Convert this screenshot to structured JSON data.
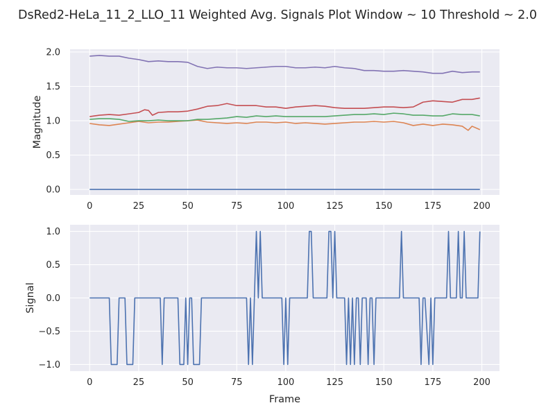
{
  "figure": {
    "title": "DsRed2-HeLa_11_2_LLO_11 Weighted Avg. Signals Plot Window ~ 10 Threshold ~ 2.0",
    "style": {
      "background": "#eaeaf2",
      "grid": "#ffffff",
      "text": "#262626"
    }
  },
  "chart_data": [
    {
      "type": "line",
      "title": "",
      "xlabel": "",
      "ylabel": "Magnitude",
      "xlim": [
        -10,
        209
      ],
      "ylim": [
        -0.08,
        2.04
      ],
      "xticks": [
        0,
        25,
        50,
        75,
        100,
        125,
        150,
        175,
        200
      ],
      "yticks": [
        0.0,
        0.5,
        1.0,
        1.5,
        2.0
      ],
      "xtick_labels": [
        "0",
        "25",
        "50",
        "75",
        "100",
        "125",
        "150",
        "175",
        "200"
      ],
      "ytick_labels": [
        "0.0",
        "0.5",
        "1.0",
        "1.5",
        "2.0"
      ],
      "grid": true,
      "series": [
        {
          "color": "#4c72b0",
          "x": [
            0,
            199
          ],
          "values": [
            0.0,
            0.0
          ]
        },
        {
          "color": "#dd8452",
          "x": [
            0,
            5,
            10,
            15,
            20,
            25,
            30,
            35,
            40,
            45,
            50,
            55,
            60,
            65,
            70,
            75,
            80,
            85,
            90,
            95,
            100,
            105,
            110,
            115,
            120,
            125,
            130,
            135,
            140,
            145,
            150,
            155,
            160,
            165,
            170,
            175,
            180,
            185,
            190,
            193,
            195,
            199
          ],
          "values": [
            0.96,
            0.94,
            0.93,
            0.95,
            0.97,
            0.99,
            0.97,
            0.98,
            0.98,
            0.99,
            1.0,
            1.01,
            0.98,
            0.97,
            0.96,
            0.97,
            0.96,
            0.98,
            0.98,
            0.97,
            0.98,
            0.96,
            0.97,
            0.96,
            0.95,
            0.96,
            0.97,
            0.98,
            0.98,
            0.99,
            0.98,
            0.99,
            0.97,
            0.93,
            0.95,
            0.93,
            0.95,
            0.94,
            0.92,
            0.86,
            0.92,
            0.87
          ]
        },
        {
          "color": "#55a868",
          "x": [
            0,
            5,
            10,
            15,
            20,
            25,
            30,
            35,
            40,
            45,
            50,
            55,
            60,
            65,
            70,
            75,
            80,
            85,
            90,
            95,
            100,
            105,
            110,
            115,
            120,
            125,
            130,
            135,
            140,
            145,
            150,
            155,
            160,
            165,
            170,
            175,
            180,
            185,
            190,
            195,
            199
          ],
          "values": [
            1.02,
            1.03,
            1.03,
            1.02,
            0.99,
            1.0,
            1.0,
            1.01,
            1.0,
            1.0,
            1.0,
            1.02,
            1.02,
            1.03,
            1.04,
            1.06,
            1.05,
            1.07,
            1.06,
            1.07,
            1.06,
            1.06,
            1.06,
            1.06,
            1.06,
            1.07,
            1.08,
            1.09,
            1.09,
            1.1,
            1.09,
            1.11,
            1.1,
            1.08,
            1.08,
            1.07,
            1.07,
            1.1,
            1.09,
            1.09,
            1.07
          ]
        },
        {
          "color": "#c44e52",
          "x": [
            0,
            5,
            10,
            15,
            20,
            25,
            28,
            30,
            32,
            35,
            40,
            45,
            50,
            55,
            60,
            65,
            70,
            75,
            80,
            85,
            90,
            95,
            100,
            105,
            110,
            115,
            120,
            125,
            130,
            135,
            140,
            145,
            150,
            155,
            160,
            165,
            170,
            175,
            180,
            185,
            190,
            195,
            199
          ],
          "values": [
            1.06,
            1.08,
            1.09,
            1.08,
            1.1,
            1.12,
            1.16,
            1.15,
            1.08,
            1.12,
            1.13,
            1.13,
            1.14,
            1.17,
            1.21,
            1.22,
            1.25,
            1.22,
            1.22,
            1.22,
            1.2,
            1.2,
            1.18,
            1.2,
            1.21,
            1.22,
            1.21,
            1.19,
            1.18,
            1.18,
            1.18,
            1.19,
            1.2,
            1.2,
            1.19,
            1.2,
            1.27,
            1.29,
            1.28,
            1.27,
            1.31,
            1.31,
            1.33
          ]
        },
        {
          "color": "#8172b3",
          "x": [
            0,
            5,
            10,
            15,
            20,
            25,
            30,
            35,
            40,
            45,
            50,
            55,
            60,
            65,
            70,
            75,
            80,
            85,
            90,
            95,
            100,
            105,
            110,
            115,
            120,
            125,
            130,
            135,
            140,
            145,
            150,
            155,
            160,
            165,
            170,
            175,
            180,
            185,
            190,
            195,
            199
          ],
          "values": [
            1.94,
            1.95,
            1.94,
            1.94,
            1.91,
            1.89,
            1.86,
            1.87,
            1.86,
            1.86,
            1.85,
            1.79,
            1.76,
            1.78,
            1.77,
            1.77,
            1.76,
            1.77,
            1.78,
            1.79,
            1.79,
            1.77,
            1.77,
            1.78,
            1.77,
            1.79,
            1.77,
            1.76,
            1.73,
            1.73,
            1.72,
            1.72,
            1.73,
            1.72,
            1.71,
            1.69,
            1.69,
            1.72,
            1.7,
            1.71,
            1.71
          ]
        }
      ]
    },
    {
      "type": "line",
      "title": "",
      "xlabel": "Frame",
      "ylabel": "Signal",
      "xlim": [
        -10,
        209
      ],
      "ylim": [
        -1.1,
        1.1
      ],
      "xticks": [
        0,
        25,
        50,
        75,
        100,
        125,
        150,
        175,
        200
      ],
      "yticks": [
        -1.0,
        -0.5,
        0.0,
        0.5,
        1.0
      ],
      "xtick_labels": [
        "0",
        "25",
        "50",
        "75",
        "100",
        "125",
        "150",
        "175",
        "200"
      ],
      "ytick_labels": [
        "−1.0",
        "−0.5",
        "0.0",
        "0.5",
        "1.0"
      ],
      "grid": true,
      "series": [
        {
          "color": "#4c72b0",
          "x": [
            0,
            10,
            11,
            14,
            15,
            18,
            19,
            22,
            23,
            36,
            37,
            38,
            45,
            46,
            48,
            49,
            50,
            51,
            52,
            53,
            56,
            57,
            80,
            81,
            82,
            83,
            84,
            85,
            86,
            87,
            88,
            89,
            90,
            98,
            99,
            100,
            101,
            102,
            103,
            111,
            112,
            113,
            114,
            121,
            122,
            123,
            124,
            125,
            126,
            130,
            131,
            132,
            133,
            134,
            135,
            136,
            137,
            138,
            139,
            141,
            142,
            143,
            144,
            145,
            146,
            158,
            159,
            160,
            161,
            168,
            169,
            170,
            171,
            173,
            174,
            175,
            176,
            182,
            183,
            184,
            185,
            187,
            188,
            189,
            190,
            191,
            192,
            198,
            199
          ],
          "values": [
            0,
            0,
            -1,
            -1,
            0,
            0,
            -1,
            -1,
            0,
            0,
            -1,
            0,
            0,
            -1,
            -1,
            0,
            -1,
            0,
            0,
            -1,
            -1,
            0,
            0,
            -1,
            0,
            -1,
            0,
            1,
            0,
            1,
            0,
            0,
            0,
            0,
            -1,
            0,
            -1,
            0,
            0,
            0,
            1,
            1,
            0,
            0,
            1,
            1,
            0,
            1,
            0,
            0,
            -1,
            0,
            -1,
            0,
            -1,
            0,
            0,
            -1,
            0,
            0,
            -1,
            0,
            0,
            -1,
            0,
            0,
            1,
            0,
            0,
            0,
            -1,
            0,
            0,
            -1,
            0,
            -1,
            0,
            0,
            1,
            0,
            0,
            0,
            1,
            0,
            0,
            1,
            0,
            0,
            1
          ]
        }
      ]
    }
  ]
}
